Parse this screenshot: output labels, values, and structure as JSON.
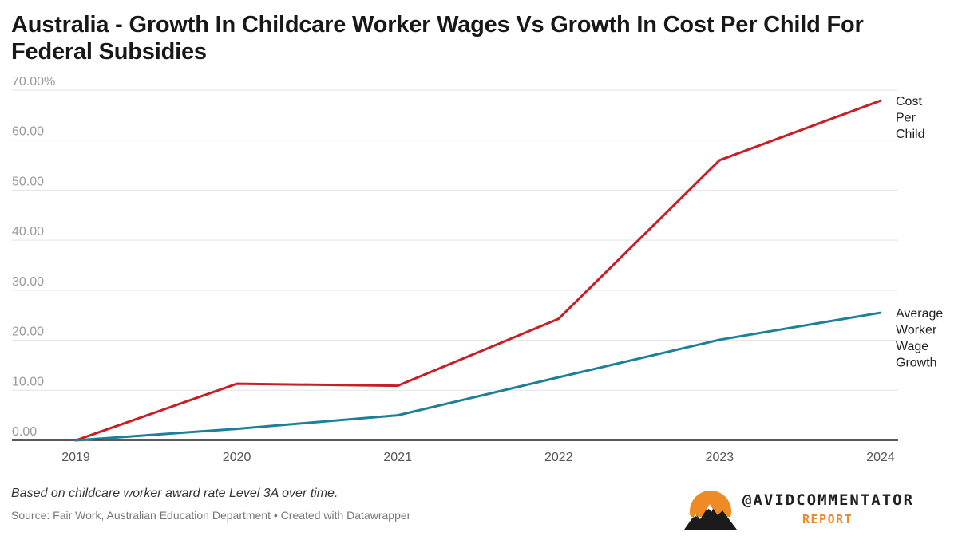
{
  "title": "Australia - Growth In Childcare Worker Wages Vs Growth In Cost Per Child For Federal Subsidies",
  "note": "Based on childcare worker award rate Level 3A over time.",
  "source": "Source: Fair Work, Australian Education Department • Created with Datawrapper",
  "logo": {
    "handle": "@AVIDCOMMENTATOR",
    "sub": "REPORT",
    "accent": "#f08a24"
  },
  "colors": {
    "cost": "#c62026",
    "wage": "#1e7f98",
    "grid": "#e3e3e3",
    "baseline": "#222222",
    "tick": "#9a9a9a"
  },
  "chart_data": {
    "type": "line",
    "x": [
      "2019",
      "2020",
      "2021",
      "2022",
      "2023",
      "2024"
    ],
    "yticks": [
      "0.00",
      "10.00",
      "20.00",
      "30.00",
      "40.00",
      "50.00",
      "60.00",
      "70.00%"
    ],
    "ylim": [
      0,
      70
    ],
    "grid": true,
    "legend": "direct-labels-right",
    "series": [
      {
        "name": "Cost Per Child",
        "label_lines": [
          "Cost",
          "Per",
          "Child"
        ],
        "values": [
          0,
          11.3,
          10.9,
          24.3,
          56.0,
          67.9
        ]
      },
      {
        "name": "Average Worker Wage Growth",
        "label_lines": [
          "Average",
          "Worker",
          "Wage",
          "Growth"
        ],
        "values": [
          0,
          2.3,
          5.0,
          12.6,
          20.1,
          25.5
        ]
      }
    ]
  }
}
